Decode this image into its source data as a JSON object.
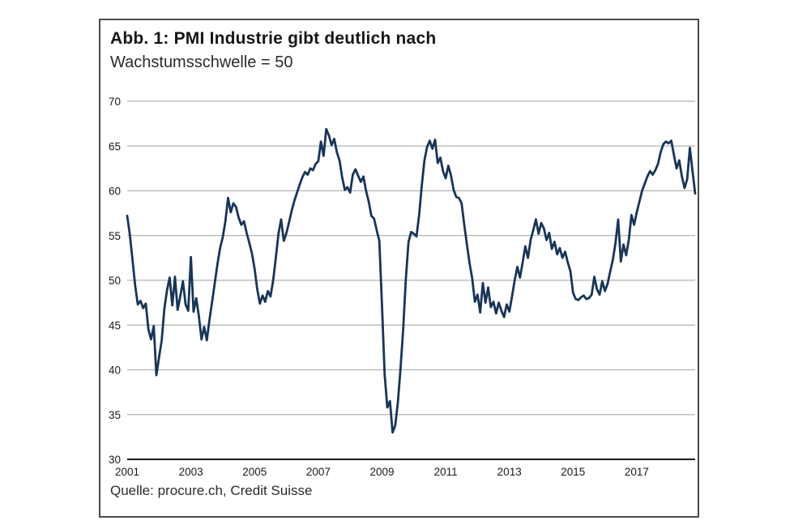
{
  "figure": {
    "title": "Abb. 1: PMI Industrie gibt deutlich nach",
    "subtitle": "Wachstumsschwelle = 50",
    "source": "Quelle: procure.ch, Credit Suisse"
  },
  "chart_data": {
    "type": "line",
    "title": "Abb. 1: PMI Industrie gibt deutlich nach",
    "subtitle": "Wachstumsschwelle = 50",
    "source": "Quelle: procure.ch, Credit Suisse",
    "frequency": "monthly",
    "x_start": "2001-01",
    "x_end": "2018-11",
    "x_tick_labels": [
      "2001",
      "2003",
      "2005",
      "2007",
      "2009",
      "2011",
      "2013",
      "2015",
      "2017"
    ],
    "y_ticks": [
      30,
      35,
      40,
      45,
      50,
      55,
      60,
      65,
      70
    ],
    "ylim": [
      30,
      70
    ],
    "grid": "horizontal-only",
    "legend": "none",
    "colors": {
      "line": "#16355a",
      "gridline": "#b2b2b0",
      "axis": "#1c1c1c",
      "text": "#1a1a1a"
    },
    "series": [
      {
        "name": "PMI Industrie (Schweiz)",
        "values": [
          57.2,
          55.1,
          52.3,
          49.4,
          47.3,
          47.7,
          46.9,
          47.4,
          44.5,
          43.4,
          44.9,
          39.4,
          41.4,
          43.3,
          46.8,
          48.9,
          50.3,
          47.2,
          50.4,
          46.7,
          48.2,
          49.9,
          47.3,
          46.6,
          52.6,
          46.5,
          48.0,
          46.0,
          43.4,
          44.8,
          43.3,
          45.6,
          47.6,
          49.7,
          51.8,
          53.6,
          54.8,
          56.6,
          59.2,
          57.6,
          58.6,
          58.2,
          57.0,
          56.2,
          56.6,
          55.3,
          54.2,
          53.0,
          51.3,
          49.0,
          47.4,
          48.3,
          47.6,
          48.8,
          48.2,
          50.0,
          52.5,
          55.2,
          56.8,
          54.4,
          55.3,
          56.5,
          57.8,
          58.9,
          59.8,
          60.7,
          61.5,
          62.1,
          61.8,
          62.5,
          62.3,
          63.0,
          63.3,
          65.5,
          63.9,
          66.9,
          66.2,
          65.1,
          65.8,
          64.3,
          63.4,
          61.5,
          60.1,
          60.4,
          59.8,
          61.8,
          62.4,
          61.7,
          61.0,
          61.6,
          60.0,
          58.8,
          57.2,
          56.9,
          55.6,
          54.4,
          47.2,
          39.5,
          35.8,
          36.5,
          33.0,
          33.8,
          36.4,
          40.2,
          44.6,
          50.2,
          54.3,
          55.4,
          55.2,
          54.9,
          57.3,
          60.6,
          63.4,
          64.9,
          65.6,
          64.7,
          65.7,
          63.1,
          63.7,
          62.2,
          61.4,
          62.8,
          61.7,
          60.1,
          59.3,
          59.2,
          58.6,
          56.2,
          54.0,
          51.9,
          50.2,
          47.6,
          48.4,
          46.4,
          49.7,
          47.5,
          49.2,
          47.0,
          47.6,
          46.3,
          47.5,
          46.6,
          45.9,
          47.3,
          46.5,
          48.2,
          50.0,
          51.5,
          50.3,
          52.0,
          53.8,
          52.5,
          54.5,
          55.6,
          56.8,
          55.2,
          56.4,
          55.8,
          54.5,
          55.3,
          53.5,
          54.3,
          52.9,
          53.6,
          52.5,
          53.2,
          52.0,
          51.0,
          48.6,
          47.9,
          47.8,
          48.1,
          48.3,
          47.9,
          48.0,
          48.4,
          50.4,
          49.0,
          48.4,
          49.9,
          48.8,
          49.6,
          51.0,
          52.3,
          54.2,
          56.8,
          52.1,
          54.0,
          52.8,
          54.5,
          57.3,
          56.2,
          57.6,
          58.8,
          60.0,
          60.8,
          61.6,
          62.2,
          61.8,
          62.3,
          63.0,
          64.3,
          65.2,
          65.5,
          65.3,
          65.6,
          64.0,
          62.5,
          63.4,
          61.6,
          60.3,
          61.3,
          64.8,
          62.2,
          59.7
        ]
      }
    ]
  }
}
